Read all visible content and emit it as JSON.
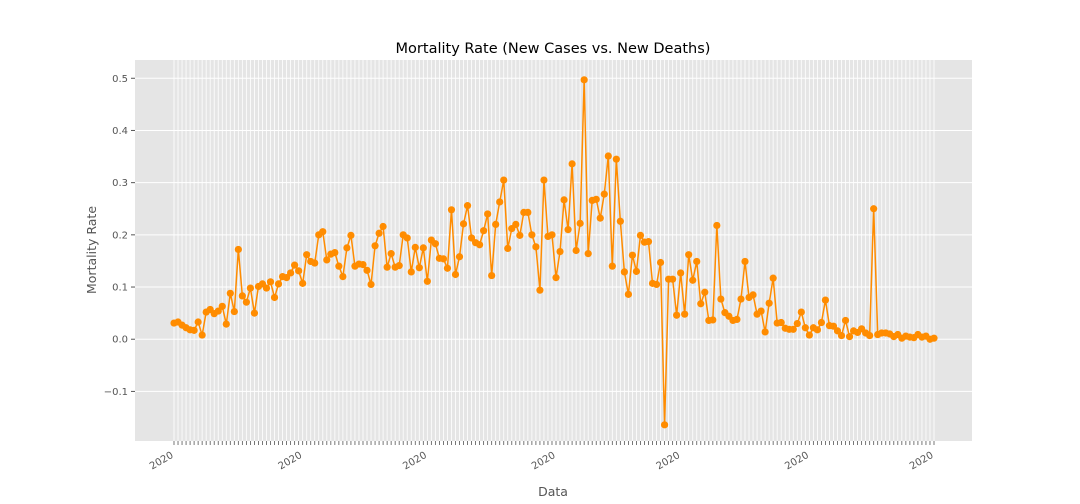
{
  "chart_data": {
    "type": "line",
    "title": "Mortality Rate (New Cases vs. New Deaths)",
    "xlabel": "Data",
    "ylabel": "Mortality Rate",
    "ylim": [
      -0.195,
      0.535
    ],
    "yticks": [
      -0.1,
      0.0,
      0.1,
      0.2,
      0.3,
      0.4,
      0.5
    ],
    "ytick_labels": [
      "−0.1",
      "0.0",
      "0.1",
      "0.2",
      "0.3",
      "0.4",
      "0.5"
    ],
    "x_tick_labels_note_visible": [
      "2020",
      "2020",
      "2020",
      "2020",
      "2020",
      "2020",
      "2020"
    ],
    "grid": true,
    "color": "#ff8c00",
    "values": [
      0.031,
      0.033,
      0.027,
      0.022,
      0.018,
      0.017,
      0.033,
      0.008,
      0.052,
      0.057,
      0.049,
      0.054,
      0.063,
      0.029,
      0.088,
      0.053,
      0.172,
      0.083,
      0.071,
      0.098,
      0.05,
      0.101,
      0.106,
      0.098,
      0.11,
      0.08,
      0.106,
      0.12,
      0.118,
      0.127,
      0.142,
      0.131,
      0.107,
      0.162,
      0.149,
      0.146,
      0.2,
      0.206,
      0.152,
      0.163,
      0.166,
      0.14,
      0.12,
      0.175,
      0.199,
      0.14,
      0.144,
      0.143,
      0.132,
      0.105,
      0.179,
      0.203,
      0.216,
      0.138,
      0.164,
      0.138,
      0.141,
      0.2,
      0.194,
      0.129,
      0.176,
      0.137,
      0.175,
      0.111,
      0.19,
      0.183,
      0.155,
      0.154,
      0.136,
      0.248,
      0.124,
      0.158,
      0.221,
      0.256,
      0.194,
      0.185,
      0.181,
      0.208,
      0.24,
      0.122,
      0.22,
      0.263,
      0.305,
      0.174,
      0.212,
      0.22,
      0.199,
      0.243,
      0.243,
      0.2,
      0.177,
      0.094,
      0.305,
      0.197,
      0.2,
      0.118,
      0.168,
      0.267,
      0.21,
      0.336,
      0.17,
      0.222,
      0.497,
      0.164,
      0.266,
      0.268,
      0.232,
      0.278,
      0.351,
      0.14,
      0.345,
      0.226,
      0.129,
      0.086,
      0.161,
      0.13,
      0.199,
      0.186,
      0.187,
      0.107,
      0.105,
      0.147,
      -0.164,
      0.115,
      0.115,
      0.046,
      0.127,
      0.048,
      0.162,
      0.113,
      0.149,
      0.068,
      0.09,
      0.036,
      0.037,
      0.218,
      0.077,
      0.051,
      0.044,
      0.036,
      0.038,
      0.077,
      0.149,
      0.08,
      0.085,
      0.048,
      0.054,
      0.014,
      0.069,
      0.117,
      0.031,
      0.032,
      0.021,
      0.019,
      0.019,
      0.03,
      0.052,
      0.022,
      0.008,
      0.022,
      0.018,
      0.032,
      0.075,
      0.026,
      0.025,
      0.016,
      0.007,
      0.036,
      0.005,
      0.016,
      0.013,
      0.02,
      0.012,
      0.007,
      0.25,
      0.009,
      0.012,
      0.012,
      0.01,
      0.005,
      0.009,
      0.002,
      0.006,
      0.004,
      0.003,
      0.009,
      0.004,
      0.006,
      0.0,
      0.002
    ]
  }
}
